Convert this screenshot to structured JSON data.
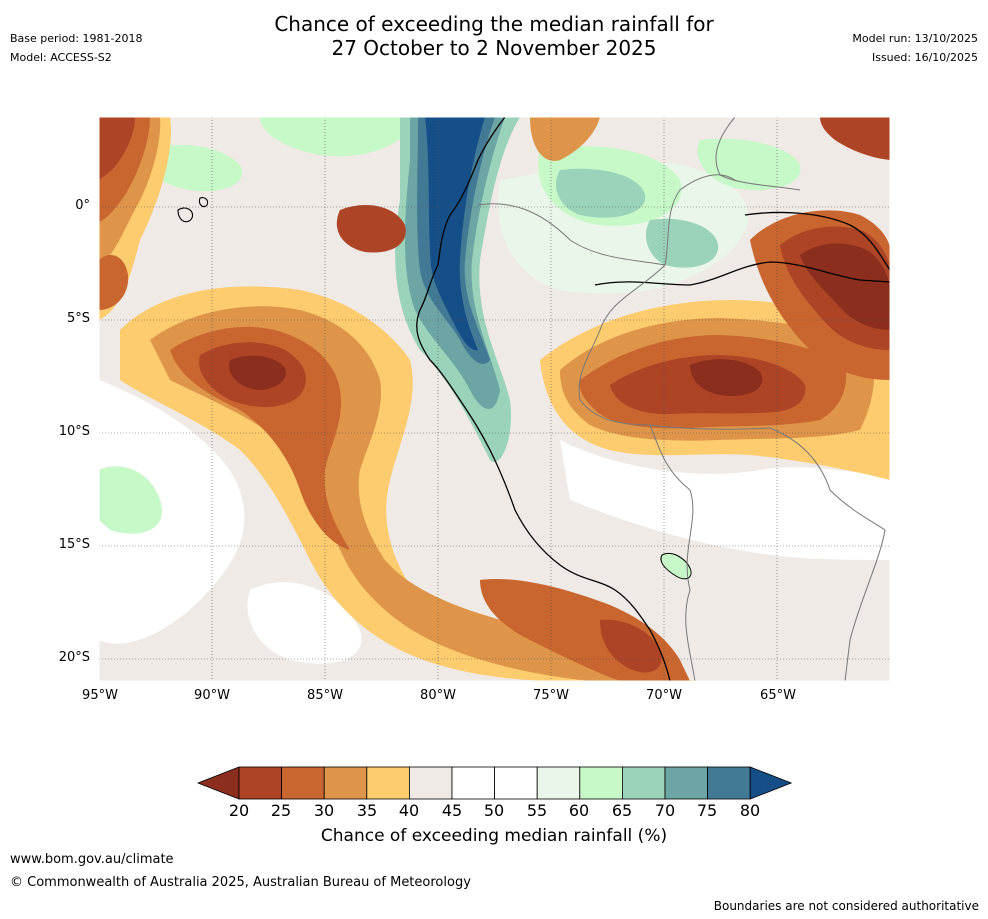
{
  "title": {
    "line1": "Chance of exceeding the median rainfall for",
    "line2": "27 October to 2 November 2025"
  },
  "meta_left": {
    "base_period": "Base period: 1981-2018",
    "model": "Model: ACCESS-S2"
  },
  "meta_right": {
    "model_run": "Model run: 13/10/2025",
    "issued": "Issued: 16/10/2025"
  },
  "map": {
    "lat_ticks": [
      "0°",
      "5°S",
      "10°S",
      "15°S",
      "20°S"
    ],
    "lon_ticks": [
      "95°W",
      "90°W",
      "85°W",
      "80°W",
      "75°W",
      "70°W",
      "65°W"
    ]
  },
  "colorbar": {
    "label": "Chance of exceeding median rainfall (%)",
    "ticks": [
      "20",
      "25",
      "30",
      "35",
      "40",
      "45",
      "50",
      "55",
      "60",
      "65",
      "70",
      "75",
      "80"
    ],
    "colors": [
      "#8b2e1e",
      "#ad4426",
      "#c9652f",
      "#df9549",
      "#fdcc6e",
      "#efeae6",
      "#ffffff",
      "#ffffff",
      "#e9f6e9",
      "#c6f8c8",
      "#9bd2ba",
      "#6da4a4",
      "#427a96",
      "#164f88"
    ]
  },
  "footer": {
    "url": "www.bom.gov.au/climate",
    "copyright": "© Commonwealth of Australia 2025, Australian Bureau of Meteorology",
    "disclaimer": "Boundaries are not considered authoritative"
  }
}
